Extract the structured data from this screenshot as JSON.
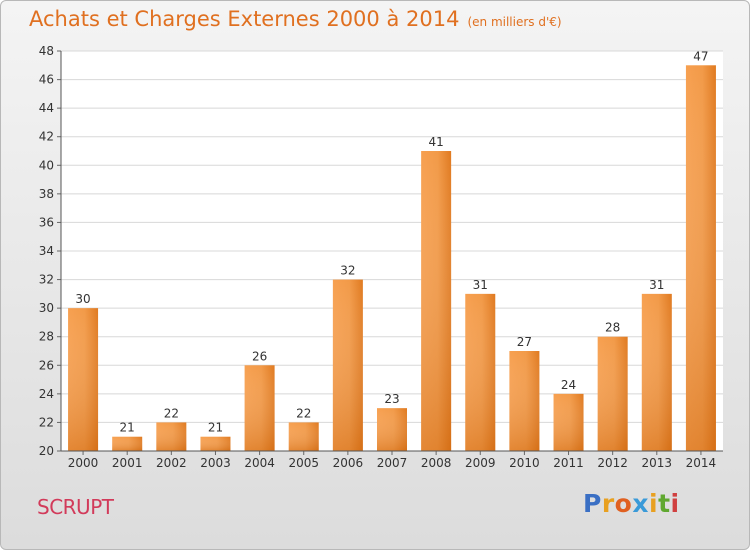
{
  "header": {
    "title": "Achats et Charges Externes 2000 à 2014",
    "unit": "(en milliers d'€)"
  },
  "footer": {
    "commune": "SCRUPT"
  },
  "logo": {
    "letters": [
      {
        "ch": "P",
        "color": "#3a6fc4"
      },
      {
        "ch": "r",
        "color": "#e8a020"
      },
      {
        "ch": "o",
        "color": "#e06020"
      },
      {
        "ch": "x",
        "color": "#3a9ad8"
      },
      {
        "ch": "i",
        "color": "#e8a020"
      },
      {
        "ch": "t",
        "color": "#60a830"
      },
      {
        "ch": "i",
        "color": "#d04040"
      }
    ]
  },
  "chart_data": {
    "type": "bar",
    "categories": [
      "2000",
      "2001",
      "2002",
      "2003",
      "2004",
      "2005",
      "2006",
      "2007",
      "2008",
      "2009",
      "2010",
      "2011",
      "2012",
      "2013",
      "2014"
    ],
    "values": [
      30,
      21,
      22,
      21,
      26,
      22,
      32,
      23,
      41,
      31,
      27,
      24,
      28,
      31,
      47
    ],
    "title": "Achats et Charges Externes 2000 à 2014",
    "ylim": [
      20,
      48
    ],
    "yticks": [
      20,
      22,
      24,
      26,
      28,
      30,
      32,
      34,
      36,
      38,
      40,
      42,
      44,
      46,
      48
    ],
    "grid": true,
    "bar_color": "#f08a30"
  }
}
